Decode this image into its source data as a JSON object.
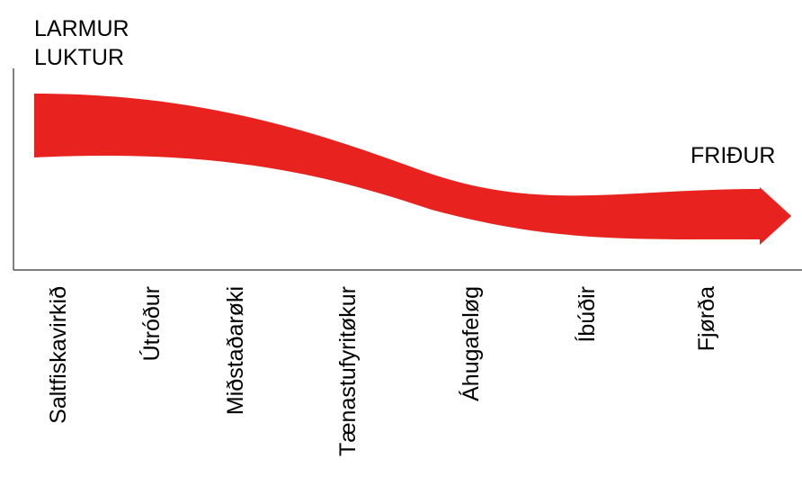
{
  "top_label_line1": "LARMUR",
  "top_label_line2": "LUKTUR",
  "end_label": "FRIÐUR",
  "arrow_color": "#e8231f",
  "axis_color": "#555555",
  "categories": [
    "Saltfiskavirkið",
    "Útróður",
    "Miðstaðarøki",
    "Tænastufyritøkur",
    "Áhugafeløg",
    "Íbúðir",
    "Fjørða"
  ]
}
